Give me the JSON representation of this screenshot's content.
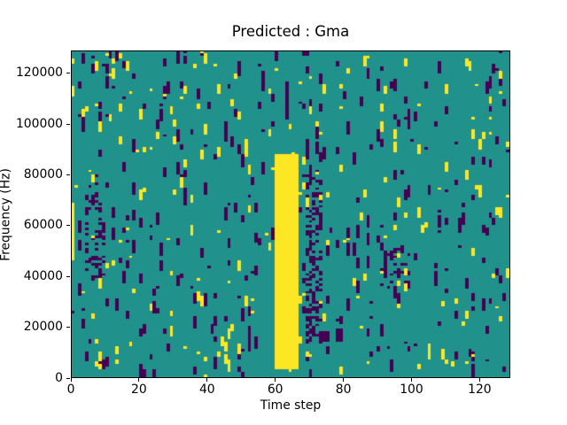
{
  "chart_data": {
    "type": "heatmap",
    "title": "Predicted : Gma",
    "xlabel": "Time step",
    "ylabel": "Frequency (Hz)",
    "x_range": [
      0,
      129
    ],
    "y_range": [
      0,
      129000
    ],
    "x_ticks": [
      0,
      20,
      40,
      60,
      80,
      100,
      120
    ],
    "y_ticks": [
      0,
      20000,
      40000,
      60000,
      80000,
      100000,
      120000
    ],
    "grid_lines": false,
    "legend": "none",
    "grid": {
      "cols": 129,
      "rows": 129
    },
    "colors": {
      "low": "#440154",
      "mid": "#21918c",
      "high": "#fde725",
      "axis": "#000000",
      "figure_background": "#ffffff"
    },
    "noise": {
      "seed": 11,
      "low_segments_max": 6,
      "low_seg_len_max": 5,
      "high_segments_max": 4,
      "high_seg_len_max": 4
    },
    "features": [
      {
        "name": "main-yellow-band",
        "value": "high",
        "cols": [
          60,
          66
        ],
        "rows": [
          3,
          87
        ]
      },
      {
        "name": "left-edge-yellow-streak",
        "value": "high",
        "cols": [
          0,
          0
        ],
        "rows": [
          46,
          68
        ]
      },
      {
        "name": "purple-cluster-right-of-band",
        "value": "low",
        "cols": [
          69,
          73
        ],
        "rows": [
          13,
          81
        ],
        "density": 0.4
      },
      {
        "name": "purple-cluster-left",
        "value": "low",
        "cols": [
          4,
          9
        ],
        "rows": [
          37,
          79
        ],
        "density": 0.25
      },
      {
        "name": "purple-cluster-mid-right",
        "value": "low",
        "cols": [
          91,
          99
        ],
        "rows": [
          34,
          52
        ],
        "density": 0.25
      }
    ],
    "description": "Ternary-valued spectrogram-style heatmap on a teal background with scattered short vertical dashes of dark purple and yellow noise; a solid yellow vertical band spans time steps 60-66 from 0 Hz up to about 88000 Hz."
  }
}
